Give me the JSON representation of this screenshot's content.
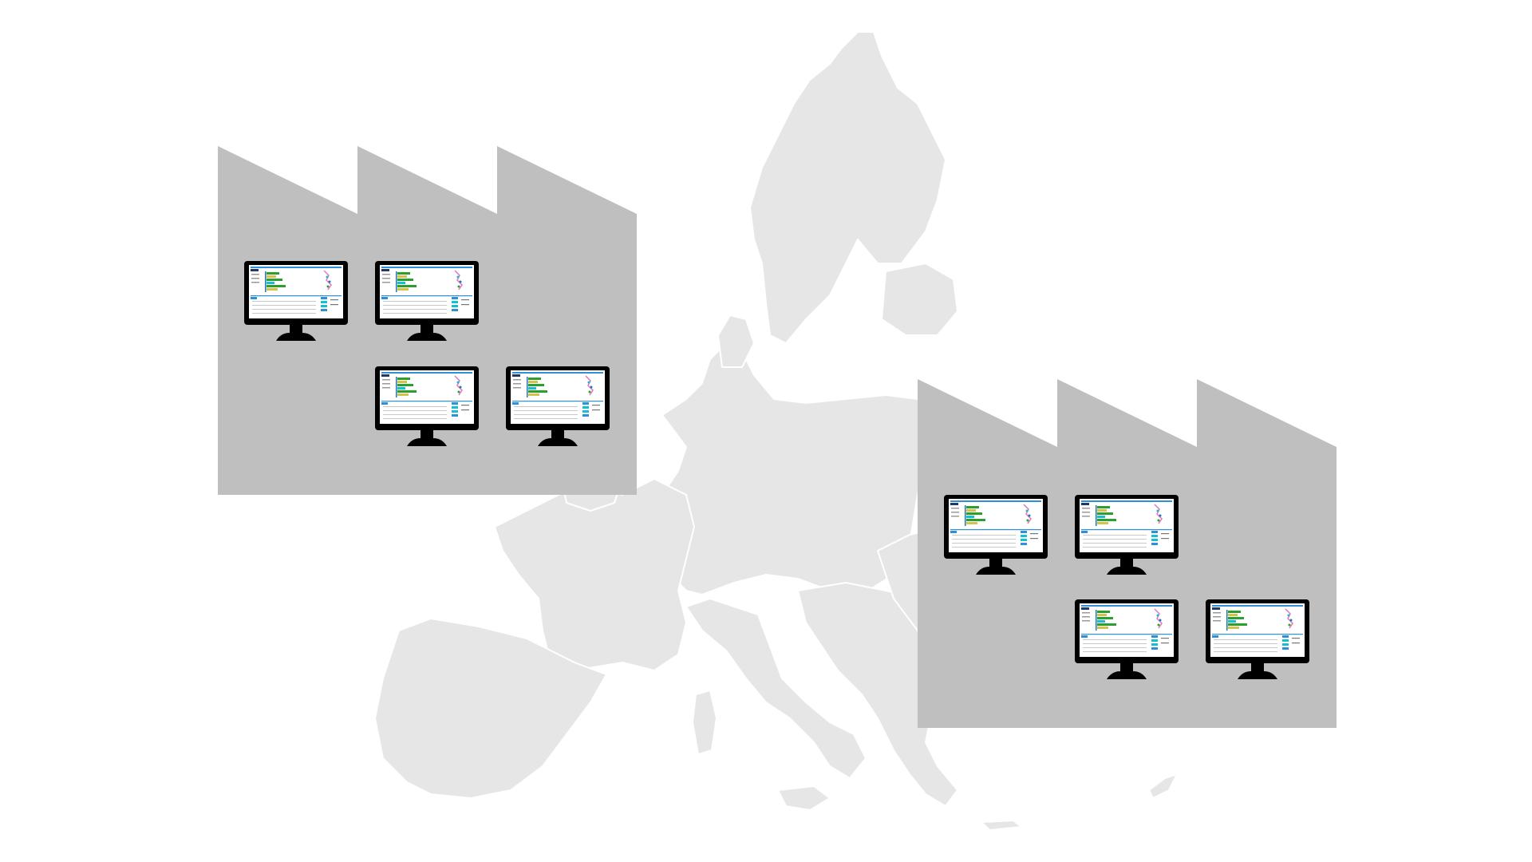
{
  "colors": {
    "background": "#ffffff",
    "map_land": "#e6e6e6",
    "map_borders": "#ffffff",
    "factory": "#bfbfbf",
    "monitor_body": "#000000",
    "screen_bg": "#ffffff",
    "screen_accent": "#2f8fd8",
    "chart_colors": [
      "#1f77b4",
      "#2ca02c",
      "#d4c34a",
      "#17becf",
      "#e377c2",
      "#7f7f7f"
    ]
  },
  "background_map": {
    "name": "europe-map",
    "icon": "europe-map-silhouette"
  },
  "factories": [
    {
      "name": "factory-west",
      "icon": "factory-icon",
      "monitor_count": 4
    },
    {
      "name": "factory-east",
      "icon": "factory-icon",
      "monitor_count": 4
    }
  ],
  "monitor": {
    "icon": "desktop-monitor-icon",
    "screen_content": "dashboard-screenshot"
  }
}
